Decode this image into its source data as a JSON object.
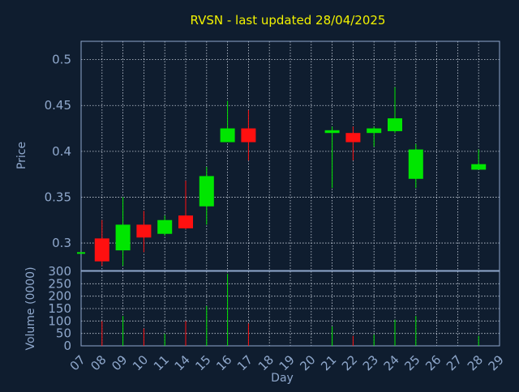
{
  "title": "RVSN - last updated 28/04/2025",
  "colors": {
    "background": "#0f1d2f",
    "title": "#f2f200",
    "axis": "#8fa8cc",
    "grid": "#c8d0dc",
    "up": "#00e600",
    "down": "#ff1010"
  },
  "chart_data": {
    "type": "candlestick",
    "xlabel": "Day",
    "price_ylabel": "Price",
    "volume_ylabel": "Volume (0000)",
    "x_ticks": [
      "07",
      "08",
      "09",
      "10",
      "11",
      "14",
      "15",
      "16",
      "17",
      "18",
      "19",
      "20",
      "21",
      "22",
      "23",
      "24",
      "25",
      "26",
      "27",
      "28",
      "29"
    ],
    "price_ylim": [
      0.27,
      0.52
    ],
    "price_ticks": [
      0.3,
      0.35,
      0.4,
      0.45,
      0.5
    ],
    "price_tick_labels": [
      "0.3",
      "0.35",
      "0.4",
      "0.45",
      "0.5"
    ],
    "volume_ylim": [
      0,
      300
    ],
    "volume_ticks": [
      0,
      50,
      100,
      150,
      200,
      250,
      300
    ],
    "volume_tick_labels": [
      "0",
      "50",
      "100",
      "150",
      "200",
      "250",
      "300"
    ],
    "grid": true,
    "candles": [
      {
        "day": "07",
        "open": 0.29,
        "high": 0.29,
        "low": 0.29,
        "close": 0.29,
        "volume": 0
      },
      {
        "day": "08",
        "open": 0.305,
        "high": 0.325,
        "low": 0.275,
        "close": 0.28,
        "volume": 100
      },
      {
        "day": "09",
        "open": 0.292,
        "high": 0.35,
        "low": 0.275,
        "close": 0.32,
        "volume": 120
      },
      {
        "day": "10",
        "open": 0.32,
        "high": 0.335,
        "low": 0.29,
        "close": 0.306,
        "volume": 70
      },
      {
        "day": "11",
        "open": 0.31,
        "high": 0.33,
        "low": 0.308,
        "close": 0.325,
        "volume": 48
      },
      {
        "day": "14",
        "open": 0.33,
        "high": 0.368,
        "low": 0.315,
        "close": 0.316,
        "volume": 100
      },
      {
        "day": "15",
        "open": 0.34,
        "high": 0.383,
        "low": 0.32,
        "close": 0.373,
        "volume": 160
      },
      {
        "day": "16",
        "open": 0.41,
        "high": 0.455,
        "low": 0.41,
        "close": 0.425,
        "volume": 290
      },
      {
        "day": "17",
        "open": 0.425,
        "high": 0.445,
        "low": 0.39,
        "close": 0.41,
        "volume": 90
      },
      {
        "day": "21",
        "open": 0.42,
        "high": 0.427,
        "low": 0.36,
        "close": 0.423,
        "volume": 78
      },
      {
        "day": "22",
        "open": 0.42,
        "high": 0.427,
        "low": 0.39,
        "close": 0.41,
        "volume": 40
      },
      {
        "day": "23",
        "open": 0.42,
        "high": 0.427,
        "low": 0.405,
        "close": 0.425,
        "volume": 45
      },
      {
        "day": "24",
        "open": 0.422,
        "high": 0.47,
        "low": 0.42,
        "close": 0.436,
        "volume": 105
      },
      {
        "day": "25",
        "open": 0.37,
        "high": 0.408,
        "low": 0.36,
        "close": 0.402,
        "volume": 120
      },
      {
        "day": "28",
        "open": 0.38,
        "high": 0.402,
        "low": 0.38,
        "close": 0.386,
        "volume": 40
      }
    ]
  }
}
